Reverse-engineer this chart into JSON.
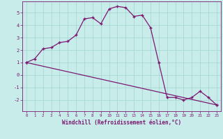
{
  "xlabel": "Windchill (Refroidissement éolien,°C)",
  "background_color": "#c8ecea",
  "line_color": "#7b1870",
  "grid_color": "#a8d8d5",
  "xlim": [
    -0.5,
    23.5
  ],
  "ylim": [
    -2.9,
    5.9
  ],
  "yticks": [
    -2,
    -1,
    0,
    1,
    2,
    3,
    4,
    5
  ],
  "xticks": [
    0,
    1,
    2,
    3,
    4,
    5,
    6,
    7,
    8,
    9,
    10,
    11,
    12,
    13,
    14,
    15,
    16,
    17,
    18,
    19,
    20,
    21,
    22,
    23
  ],
  "series1_x": [
    0,
    1,
    2,
    3,
    4,
    5,
    6,
    7,
    8,
    9,
    10,
    11,
    12,
    13,
    14,
    15,
    16,
    17,
    18,
    19,
    20,
    21,
    22,
    23
  ],
  "series1_y": [
    1.0,
    1.3,
    2.1,
    2.2,
    2.6,
    2.7,
    3.2,
    4.5,
    4.6,
    4.1,
    5.3,
    5.5,
    5.4,
    4.7,
    4.8,
    3.8,
    1.0,
    -1.8,
    -1.8,
    -2.0,
    -1.8,
    -1.3,
    -1.8,
    -2.4
  ],
  "series2_x": [
    0,
    23
  ],
  "series2_y": [
    1.0,
    -2.4
  ],
  "marker": "+"
}
